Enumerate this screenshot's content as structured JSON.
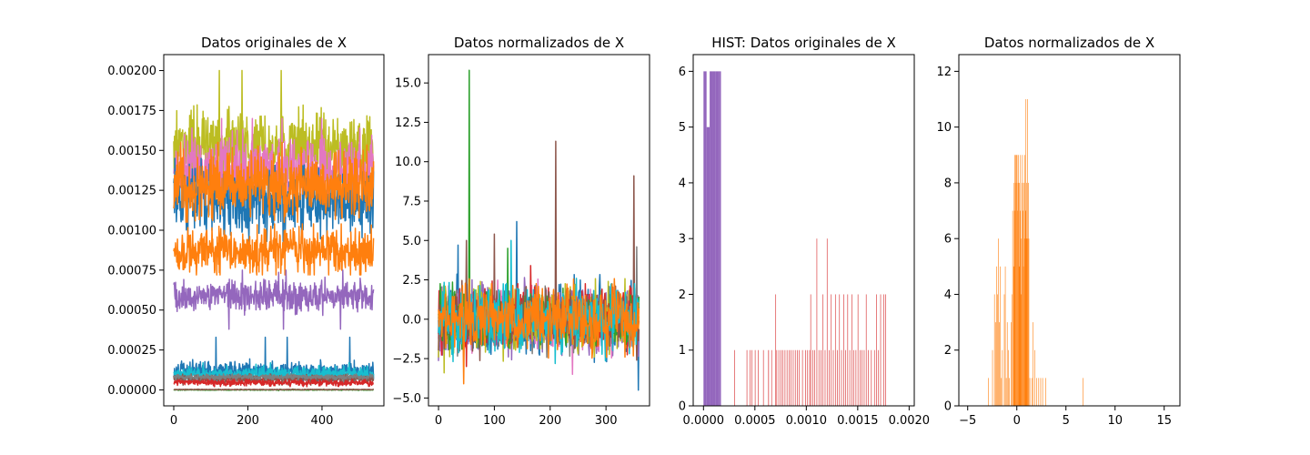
{
  "chart_data": [
    {
      "type": "line",
      "title": "Datos originales de X",
      "xlim": [
        -27,
        567
      ],
      "ylim": [
        -0.0001,
        0.0021
      ],
      "xticks": [
        0,
        200,
        400
      ],
      "yticks": [
        0.0,
        0.00025,
        0.0005,
        0.00075,
        0.001,
        0.00125,
        0.0015,
        0.00175,
        0.002
      ],
      "ytick_labels": [
        "0.00000",
        "0.00025",
        "0.00050",
        "0.00075",
        "0.00100",
        "0.00125",
        "0.00150",
        "0.00175",
        "0.00200"
      ],
      "n_points": 540,
      "series": [
        {
          "color": "#bcbd22",
          "level": 0.00152,
          "noise": 0.00011,
          "min": 0.0013,
          "max": 0.002
        },
        {
          "color": "#e377c2",
          "level": 0.00138,
          "noise": 0.0001,
          "min": 0.0012,
          "max": 0.0017
        },
        {
          "color": "#1f77b4",
          "level": 0.00118,
          "noise": 0.0001,
          "min": 0.00093,
          "max": 0.00145
        },
        {
          "color": "#ff7f0e",
          "level": 0.00128,
          "noise": 0.0001,
          "min": 0.00105,
          "max": 0.00155
        },
        {
          "color": "#ff7f0e",
          "level": 0.00087,
          "noise": 7e-05,
          "min": 0.00072,
          "max": 0.00104
        },
        {
          "color": "#9467bd",
          "level": 0.00059,
          "noise": 5e-05,
          "min": 0.00038,
          "max": 0.00075
        },
        {
          "color": "#1f77b4",
          "level": 0.000115,
          "noise": 3e-05,
          "min": 4e-05,
          "max": 0.00033
        },
        {
          "color": "#17becf",
          "level": 0.0001,
          "noise": 2.2e-05,
          "min": 5e-05,
          "max": 0.00017
        },
        {
          "color": "#8c564b",
          "level": 7e-05,
          "noise": 1.2e-05,
          "min": 3e-05,
          "max": 0.0001
        },
        {
          "color": "#d62728",
          "level": 4.5e-05,
          "noise": 1e-05,
          "min": 2e-05,
          "max": 8e-05
        },
        {
          "color": "#7f7f7f",
          "level": 8e-05,
          "noise": 8e-06,
          "min": 5e-05,
          "max": 0.0001
        },
        {
          "color": "#2ca02c",
          "level": 0.0,
          "noise": 1.5e-06,
          "min": -5e-06,
          "max": 5e-06
        },
        {
          "color": "#8c564b",
          "level": 2e-06,
          "noise": 1e-06,
          "min": 0.0,
          "max": 5e-06
        }
      ]
    },
    {
      "type": "line",
      "title": "Datos normalizados de X",
      "xlim": [
        -18,
        378
      ],
      "ylim": [
        -5.5,
        16.8
      ],
      "xticks": [
        0,
        100,
        200,
        300
      ],
      "yticks": [
        -5.0,
        -2.5,
        0.0,
        2.5,
        5.0,
        7.5,
        10.0,
        12.5,
        15.0
      ],
      "ytick_labels": [
        "−5.0",
        "−2.5",
        "0.0",
        "2.5",
        "5.0",
        "7.5",
        "10.0",
        "12.5",
        "15.0"
      ],
      "n_points": 360,
      "series": [
        {
          "color": "#1f77b4",
          "noise": 1.1,
          "spikes": [
            [
              35,
              4.7
            ],
            [
              140,
              6.2
            ],
            [
              358,
              -4.5
            ]
          ]
        },
        {
          "color": "#9467bd",
          "noise": 1.0,
          "spikes": [
            [
              60,
              2.5
            ]
          ]
        },
        {
          "color": "#e377c2",
          "noise": 1.0,
          "spikes": [
            [
              240,
              -3.5
            ]
          ]
        },
        {
          "color": "#7f7f7f",
          "noise": 0.9,
          "spikes": [
            [
              355,
              4.6
            ]
          ]
        },
        {
          "color": "#bcbd22",
          "noise": 1.0,
          "spikes": [
            [
              10,
              -3.4
            ],
            [
              75,
              2.4
            ]
          ]
        },
        {
          "color": "#d62728",
          "noise": 0.9,
          "spikes": [
            [
              165,
              3.4
            ],
            [
              50,
              -3.0
            ]
          ]
        },
        {
          "color": "#2ca02c",
          "noise": 0.9,
          "spikes": [
            [
              55,
              15.8
            ],
            [
              124,
              4.5
            ]
          ]
        },
        {
          "color": "#8c564b",
          "noise": 0.9,
          "spikes": [
            [
              210,
              11.3
            ],
            [
              350,
              9.1
            ],
            [
              100,
              5.4
            ],
            [
              50,
              5.0
            ]
          ]
        },
        {
          "color": "#17becf",
          "noise": 1.1,
          "spikes": [
            [
              130,
              5.0
            ]
          ]
        },
        {
          "color": "#ff7f0e",
          "noise": 1.0,
          "spikes": [
            [
              45,
              -4.1
            ]
          ]
        }
      ]
    },
    {
      "type": "bar",
      "title": "HIST:    Datos originales de X",
      "xlim": [
        -0.0001,
        0.00205
      ],
      "ylim": [
        0,
        6.3
      ],
      "xticks": [
        0.0,
        0.0005,
        0.001,
        0.0015,
        0.002
      ],
      "xtick_labels": [
        "0.0000",
        "0.0005",
        "0.0010",
        "0.0015",
        "0.0020"
      ],
      "yticks": [
        0,
        1,
        2,
        3,
        4,
        5,
        6
      ],
      "ytick_labels": [
        "0",
        "1",
        "2",
        "3",
        "4",
        "5",
        "6"
      ],
      "series": [
        {
          "color": "#9467bd",
          "bins": [
            [
              0.0,
              3e-05,
              6
            ],
            [
              3e-05,
              6e-05,
              5
            ],
            [
              6e-05,
              9e-05,
              6
            ],
            [
              9e-05,
              0.00012,
              6
            ],
            [
              0.00012,
              0.00015,
              6
            ],
            [
              0.00015,
              0.00017,
              6
            ]
          ]
        },
        {
          "color": "#d62728",
          "bins": [
            [
              0.0003,
              0.000305,
              1
            ],
            [
              0.00042,
              0.000425,
              1
            ],
            [
              0.00045,
              0.000455,
              1
            ],
            [
              0.00047,
              0.000475,
              1
            ],
            [
              0.0005,
              0.000505,
              1
            ],
            [
              0.00053,
              0.000535,
              1
            ],
            [
              0.00058,
              0.000585,
              1
            ],
            [
              0.00063,
              0.000636,
              1
            ],
            [
              0.00066,
              0.000665,
              1
            ],
            [
              0.0007,
              0.000705,
              2
            ],
            [
              0.00071,
              0.000715,
              1
            ],
            [
              0.00073,
              0.000735,
              1
            ],
            [
              0.00075,
              0.000755,
              1
            ],
            [
              0.00077,
              0.000775,
              1
            ],
            [
              0.00079,
              0.000795,
              1
            ],
            [
              0.00081,
              0.000815,
              1
            ],
            [
              0.00083,
              0.000835,
              1
            ],
            [
              0.00085,
              0.000855,
              1
            ],
            [
              0.00087,
              0.000875,
              1
            ],
            [
              0.00089,
              0.000895,
              1
            ],
            [
              0.00091,
              0.000915,
              1
            ],
            [
              0.00093,
              0.000935,
              1
            ],
            [
              0.00096,
              0.000965,
              1
            ],
            [
              0.00099,
              0.000995,
              1
            ],
            [
              0.00101,
              0.001015,
              1
            ],
            [
              0.00103,
              0.001035,
              1
            ],
            [
              0.00104,
              0.001044,
              2
            ],
            [
              0.00106,
              0.001065,
              1
            ],
            [
              0.00108,
              0.001085,
              1
            ],
            [
              0.0011,
              0.001105,
              3
            ],
            [
              0.00112,
              0.001125,
              1
            ],
            [
              0.00114,
              0.001145,
              1
            ],
            [
              0.00116,
              0.001165,
              2
            ],
            [
              0.00118,
              0.001185,
              1
            ],
            [
              0.0012,
              0.001205,
              3
            ],
            [
              0.00122,
              0.001225,
              1
            ],
            [
              0.00124,
              0.001245,
              2
            ],
            [
              0.00126,
              0.001265,
              1
            ],
            [
              0.00128,
              0.001285,
              2
            ],
            [
              0.0013,
              0.001305,
              1
            ],
            [
              0.00132,
              0.001325,
              2
            ],
            [
              0.00134,
              0.001345,
              1
            ],
            [
              0.00136,
              0.001365,
              2
            ],
            [
              0.00138,
              0.001385,
              1
            ],
            [
              0.0014,
              0.001405,
              2
            ],
            [
              0.00142,
              0.001425,
              1
            ],
            [
              0.00144,
              0.001445,
              2
            ],
            [
              0.00146,
              0.001465,
              1
            ],
            [
              0.00148,
              0.001485,
              1
            ],
            [
              0.0015,
              0.001505,
              2
            ],
            [
              0.00152,
              0.001525,
              1
            ],
            [
              0.00154,
              0.001545,
              1
            ],
            [
              0.00156,
              0.001565,
              1
            ],
            [
              0.00158,
              0.001585,
              2
            ],
            [
              0.0016,
              0.001605,
              1
            ],
            [
              0.00163,
              0.001635,
              1
            ],
            [
              0.00166,
              0.001665,
              1
            ],
            [
              0.00168,
              0.001685,
              2
            ],
            [
              0.0017,
              0.001705,
              1
            ],
            [
              0.00172,
              0.001725,
              2
            ],
            [
              0.00175,
              0.001755,
              2
            ],
            [
              0.00177,
              0.001775,
              2
            ]
          ]
        }
      ]
    },
    {
      "type": "bar",
      "title": "Datos normalizados de X",
      "xlim": [
        -5.9,
        16.6
      ],
      "ylim": [
        0,
        12.6
      ],
      "xticks": [
        -5,
        0,
        5,
        10,
        15
      ],
      "xtick_labels": [
        "−5",
        "0",
        "5",
        "10",
        "15"
      ],
      "yticks": [
        0,
        2,
        4,
        6,
        8,
        10,
        12
      ],
      "ytick_labels": [
        "0",
        "2",
        "4",
        "6",
        "8",
        "10",
        "12"
      ],
      "series": [
        {
          "color": "#ff7f0e",
          "bins": [
            [
              -2.9,
              -2.85,
              1
            ],
            [
              -2.5,
              -2.45,
              2
            ],
            [
              -2.3,
              -2.25,
              4
            ],
            [
              -2.2,
              -2.15,
              3
            ],
            [
              -2.1,
              -2.05,
              5
            ],
            [
              -2.0,
              -1.95,
              4
            ],
            [
              -1.9,
              -1.85,
              6
            ],
            [
              -1.8,
              -1.75,
              3
            ],
            [
              -1.7,
              -1.65,
              5
            ],
            [
              -1.6,
              -1.55,
              1
            ],
            [
              -1.5,
              -1.45,
              2
            ],
            [
              -1.3,
              -1.25,
              4
            ],
            [
              -1.2,
              -1.15,
              5
            ],
            [
              -1.1,
              -1.05,
              1
            ],
            [
              -1.0,
              -0.95,
              3
            ],
            [
              -0.9,
              -0.85,
              2
            ],
            [
              -0.8,
              -0.75,
              1
            ],
            [
              -0.6,
              -0.55,
              3
            ],
            [
              -0.5,
              -0.45,
              4
            ],
            [
              -0.45,
              -0.4,
              7
            ],
            [
              -0.35,
              -0.3,
              5
            ],
            [
              -0.3,
              -0.25,
              8
            ],
            [
              -0.25,
              -0.2,
              9
            ],
            [
              -0.2,
              -0.15,
              7
            ],
            [
              -0.15,
              -0.1,
              9
            ],
            [
              -0.1,
              -0.05,
              8
            ],
            [
              -0.05,
              0.0,
              9
            ],
            [
              0.0,
              0.05,
              9
            ],
            [
              0.05,
              0.1,
              7
            ],
            [
              0.1,
              0.15,
              8
            ],
            [
              0.15,
              0.2,
              9
            ],
            [
              0.2,
              0.25,
              5
            ],
            [
              0.25,
              0.3,
              8
            ],
            [
              0.3,
              0.35,
              7
            ],
            [
              0.35,
              0.4,
              9
            ],
            [
              0.4,
              0.45,
              4
            ],
            [
              0.45,
              0.5,
              6
            ],
            [
              0.5,
              0.55,
              8
            ],
            [
              0.55,
              0.6,
              9
            ],
            [
              0.6,
              0.65,
              7
            ],
            [
              0.65,
              0.7,
              5
            ],
            [
              0.7,
              0.75,
              8
            ],
            [
              0.75,
              0.8,
              6
            ],
            [
              0.8,
              0.85,
              9
            ],
            [
              0.85,
              0.9,
              7
            ],
            [
              0.9,
              0.95,
              11
            ],
            [
              0.95,
              1.0,
              8
            ],
            [
              1.0,
              1.05,
              6
            ],
            [
              1.05,
              1.1,
              11
            ],
            [
              1.1,
              1.15,
              6
            ],
            [
              1.15,
              1.2,
              8
            ],
            [
              1.2,
              1.25,
              6
            ],
            [
              1.3,
              1.35,
              1
            ],
            [
              1.5,
              1.55,
              1
            ],
            [
              1.6,
              1.65,
              3
            ],
            [
              1.8,
              1.85,
              2
            ],
            [
              2.0,
              2.05,
              1
            ],
            [
              2.2,
              2.25,
              1
            ],
            [
              2.4,
              2.45,
              1
            ],
            [
              2.6,
              2.65,
              1
            ],
            [
              2.9,
              2.95,
              1
            ],
            [
              6.7,
              6.75,
              1
            ]
          ]
        }
      ]
    }
  ]
}
